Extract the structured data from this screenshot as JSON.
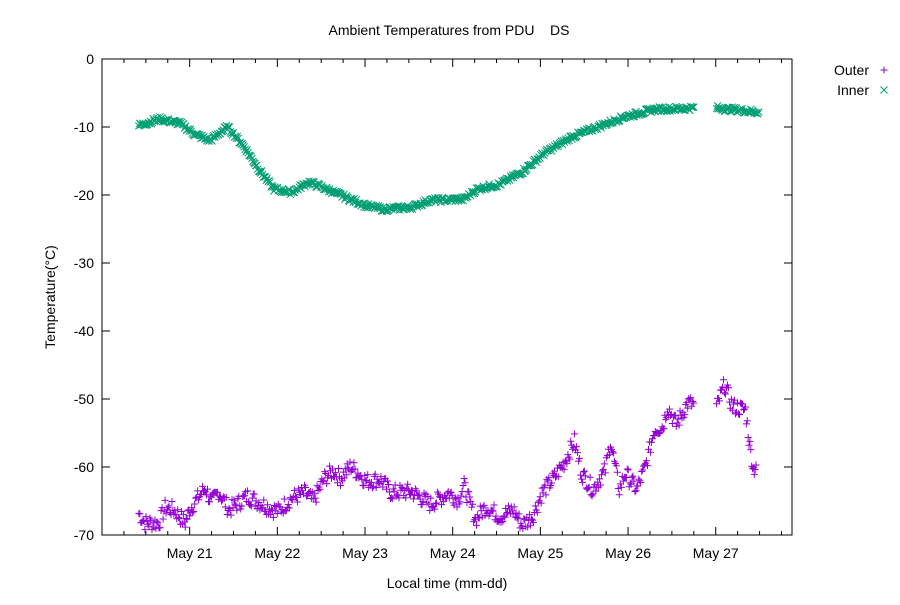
{
  "chart_data": {
    "type": "scatter",
    "title": "Ambient Temperatures from PDU    DS",
    "xlabel": "Local time (mm-dd)",
    "ylabel": "Temperature(°C)",
    "xlim": [
      20.0,
      27.87
    ],
    "ylim": [
      -70,
      0
    ],
    "x_units": "day of May",
    "x_ticks": [
      {
        "value": 21,
        "label": "May 21"
      },
      {
        "value": 22,
        "label": "May 22"
      },
      {
        "value": 23,
        "label": "May 23"
      },
      {
        "value": 24,
        "label": "May 24"
      },
      {
        "value": 25,
        "label": "May 25"
      },
      {
        "value": 26,
        "label": "May 26"
      },
      {
        "value": 27,
        "label": "May 27"
      }
    ],
    "y_ticks": [
      {
        "value": 0,
        "label": "0"
      },
      {
        "value": -10,
        "label": "-10"
      },
      {
        "value": -20,
        "label": "-20"
      },
      {
        "value": -30,
        "label": "-30"
      },
      {
        "value": -40,
        "label": "-40"
      },
      {
        "value": -50,
        "label": "-50"
      },
      {
        "value": -60,
        "label": "-60"
      },
      {
        "value": -70,
        "label": "-70"
      }
    ],
    "grid": false,
    "legend_position": "outside-top-right",
    "series": [
      {
        "name": "Outer",
        "marker": "+",
        "color": "#9400d3",
        "points": [
          [
            20.42,
            -66.8
          ],
          [
            20.49,
            -68.2
          ],
          [
            20.65,
            -68.2
          ],
          [
            20.72,
            -66
          ],
          [
            20.82,
            -66.3
          ],
          [
            20.95,
            -68.2
          ],
          [
            21.0,
            -66.3
          ],
          [
            21.08,
            -64.8
          ],
          [
            21.18,
            -63.1
          ],
          [
            21.25,
            -65.3
          ],
          [
            21.33,
            -63.6
          ],
          [
            21.45,
            -66.3
          ],
          [
            21.66,
            -64.3
          ],
          [
            21.91,
            -66
          ],
          [
            22.01,
            -66.5
          ],
          [
            22.16,
            -64.6
          ],
          [
            22.31,
            -63.8
          ],
          [
            22.41,
            -65
          ],
          [
            22.54,
            -61.6
          ],
          [
            22.64,
            -60.6
          ],
          [
            22.72,
            -61.6
          ],
          [
            22.84,
            -59.9
          ],
          [
            23.02,
            -62.1
          ],
          [
            23.17,
            -61.8
          ],
          [
            23.3,
            -63.8
          ],
          [
            23.53,
            -63.6
          ],
          [
            23.75,
            -65.5
          ],
          [
            23.95,
            -63.8
          ],
          [
            24.06,
            -64.8
          ],
          [
            24.13,
            -62.8
          ],
          [
            24.26,
            -67.7
          ],
          [
            24.38,
            -65.8
          ],
          [
            24.54,
            -67.3
          ],
          [
            24.69,
            -66.3
          ],
          [
            24.79,
            -68.5
          ],
          [
            24.91,
            -67.3
          ],
          [
            25.02,
            -63.8
          ],
          [
            25.14,
            -61.9
          ],
          [
            25.27,
            -59.4
          ],
          [
            25.39,
            -56.2
          ],
          [
            25.47,
            -60.9
          ],
          [
            25.6,
            -63.3
          ],
          [
            25.74,
            -60.4
          ],
          [
            25.8,
            -56.2
          ],
          [
            25.9,
            -63.3
          ],
          [
            25.97,
            -60.9
          ],
          [
            26.1,
            -63.3
          ],
          [
            26.2,
            -59.9
          ],
          [
            26.3,
            -54.5
          ],
          [
            26.4,
            -54.0
          ],
          [
            26.45,
            -51.1
          ],
          [
            26.55,
            -53.8
          ],
          [
            26.68,
            -50.6
          ],
          [
            26.76,
            -50.8
          ],
          null,
          [
            27.01,
            -51.3
          ],
          [
            27.1,
            -47.9
          ],
          [
            27.19,
            -51.1
          ],
          [
            27.34,
            -51.6
          ],
          [
            27.39,
            -57
          ],
          [
            27.43,
            -60.4
          ],
          [
            27.46,
            -59.7
          ]
        ]
      },
      {
        "name": "Inner",
        "marker": "x",
        "color": "#009e73",
        "points": [
          [
            20.42,
            -9.8
          ],
          [
            20.65,
            -8.8
          ],
          [
            20.9,
            -9.5
          ],
          [
            21.05,
            -11
          ],
          [
            21.23,
            -12
          ],
          [
            21.43,
            -10
          ],
          [
            21.61,
            -12.7
          ],
          [
            21.81,
            -16.6
          ],
          [
            21.96,
            -19.1
          ],
          [
            22.16,
            -19.6
          ],
          [
            22.36,
            -18.1
          ],
          [
            22.52,
            -18.9
          ],
          [
            22.77,
            -20.3
          ],
          [
            23.02,
            -21.6
          ],
          [
            23.22,
            -22.1
          ],
          [
            23.53,
            -21.8
          ],
          [
            23.73,
            -20.8
          ],
          [
            24.13,
            -20.6
          ],
          [
            24.28,
            -19.1
          ],
          [
            24.54,
            -18.4
          ],
          [
            24.79,
            -16.6
          ],
          [
            25.04,
            -13.9
          ],
          [
            25.35,
            -11.5
          ],
          [
            25.65,
            -10
          ],
          [
            25.96,
            -8.5
          ],
          [
            26.3,
            -7.4
          ],
          [
            26.76,
            -7.2
          ],
          null,
          [
            27.01,
            -7.2
          ],
          [
            27.49,
            -7.8
          ]
        ]
      }
    ]
  }
}
